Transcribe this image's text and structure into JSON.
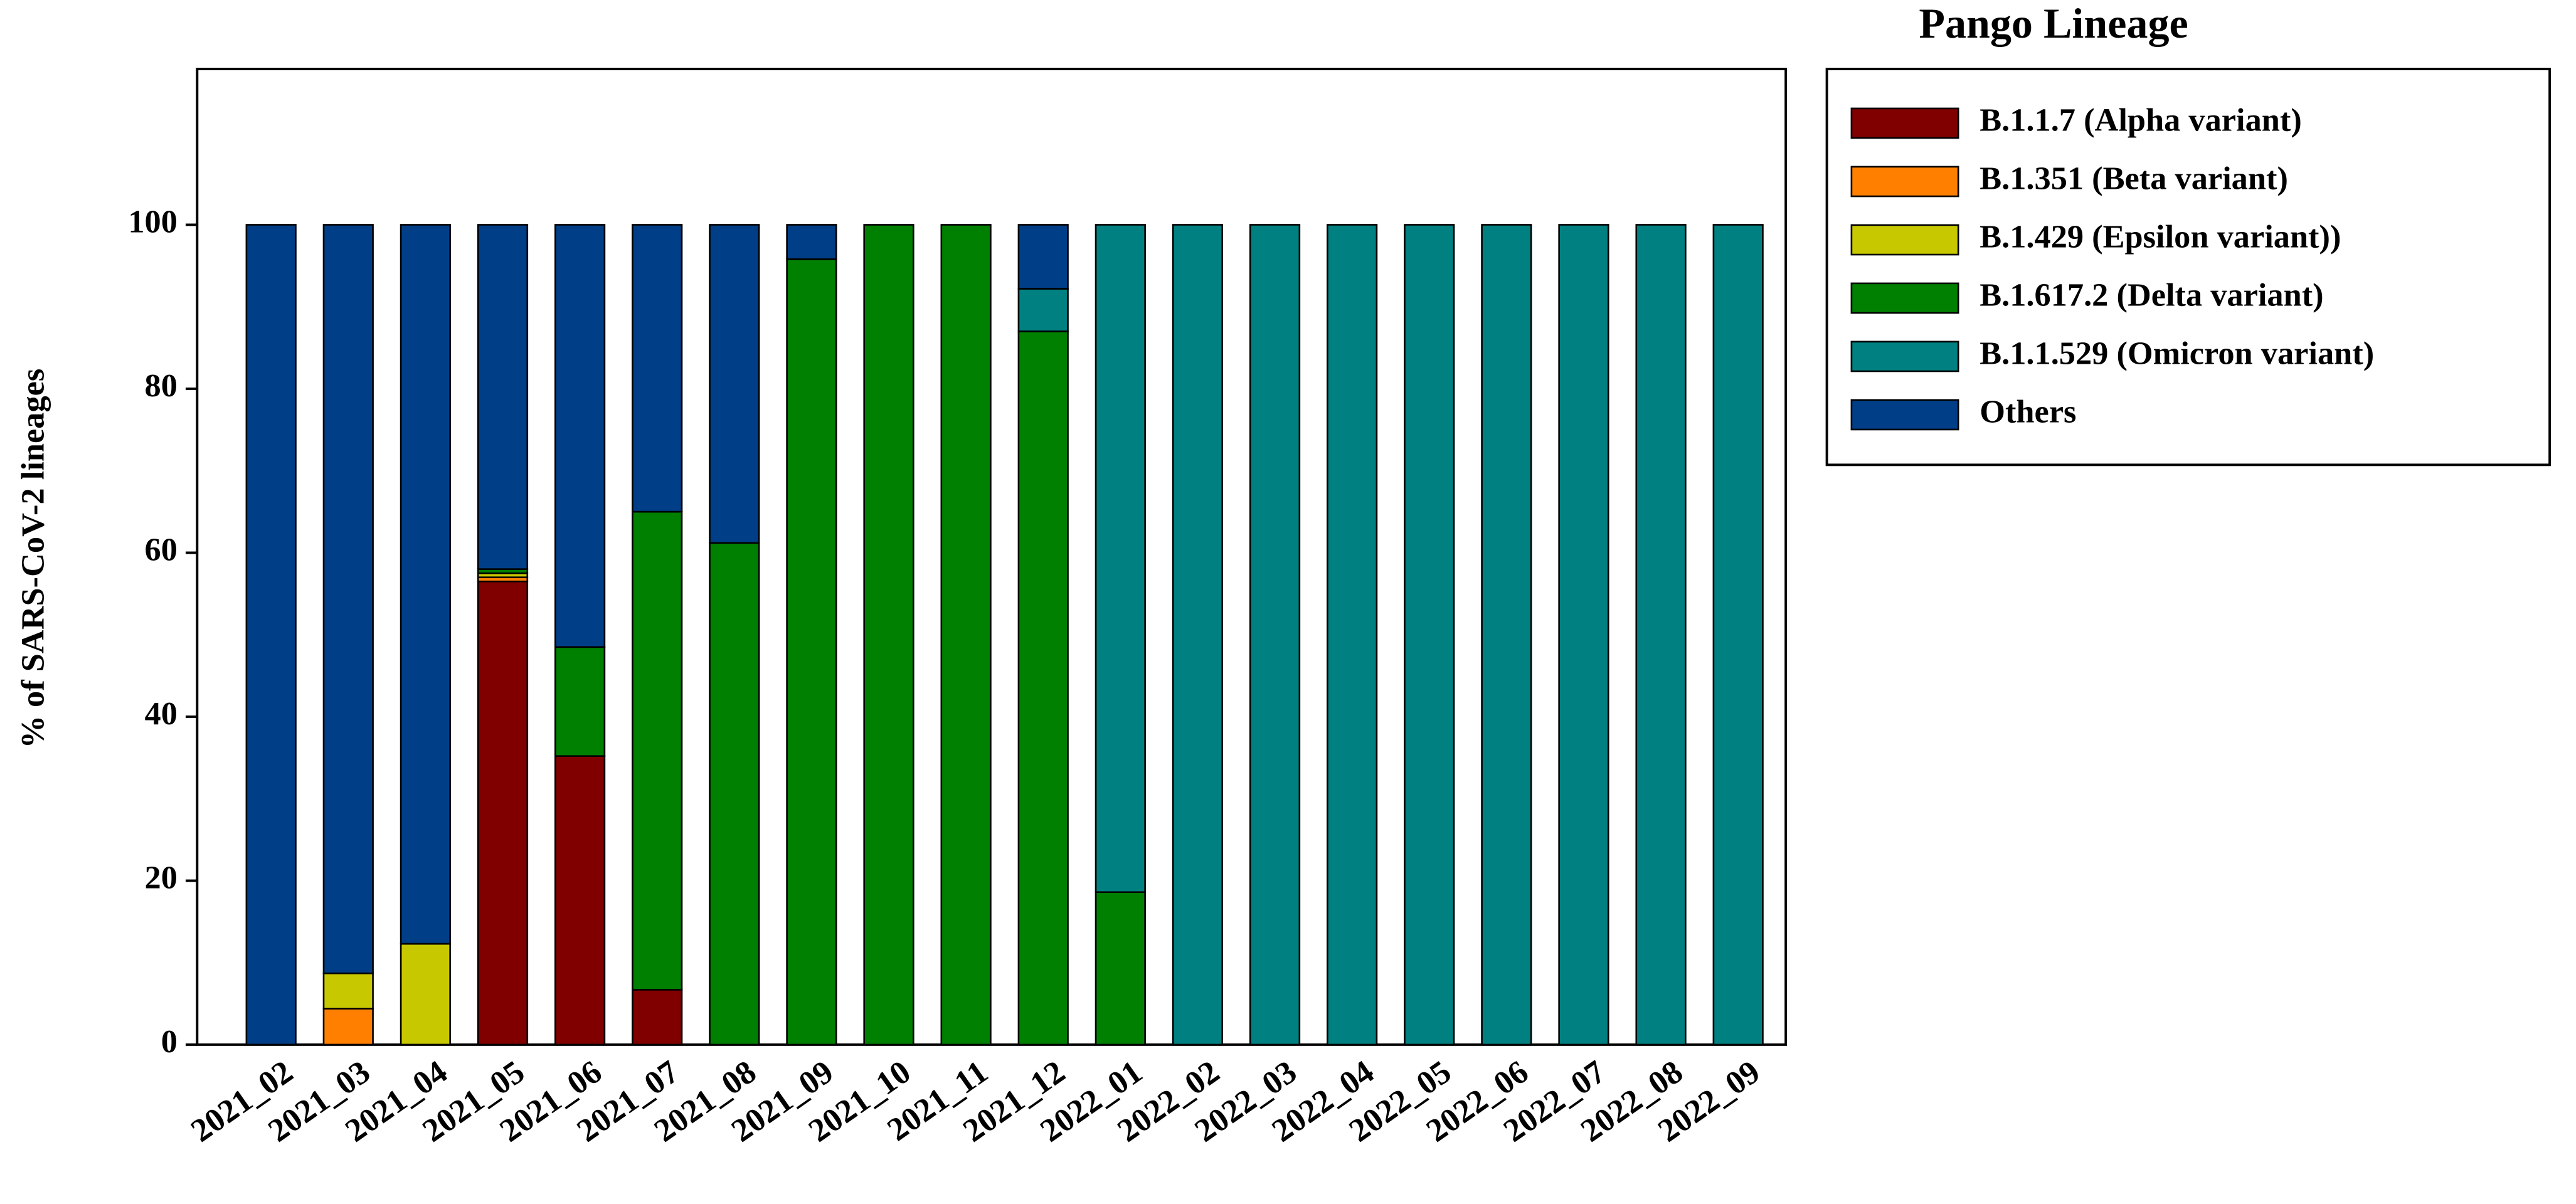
{
  "chart_data": {
    "type": "stacked_bar",
    "title": "Pango Lineage",
    "y_label": "% of SARS-CoV-2 lineages",
    "categories": [
      "2021_02",
      "2021_03",
      "2021_04",
      "2021_05",
      "2021_06",
      "2021_07",
      "2021_08",
      "2021_09",
      "2021_10",
      "2021_11",
      "2021_12",
      "2022_01",
      "2022_02",
      "2022_03",
      "2022_04",
      "2022_05",
      "2022_06",
      "2022_07",
      "2022_08",
      "2022_09"
    ],
    "series": [
      {
        "name": "B.1.1.7 (Alpha variant)",
        "color": "#800000",
        "values": [
          0,
          0,
          0,
          56.5,
          35.2,
          6.7,
          0,
          0,
          0,
          0,
          0,
          0,
          0,
          0,
          0,
          0,
          0,
          0,
          0,
          0
        ]
      },
      {
        "name": "B.1.351 (Beta variant)",
        "color": "#ff8000",
        "values": [
          0,
          4.4,
          0,
          0.5,
          0,
          0,
          0,
          0,
          0,
          0,
          0,
          0,
          0,
          0,
          0,
          0,
          0,
          0,
          0,
          0
        ]
      },
      {
        "name": "B.1.429 (Epsilon variant))",
        "color": "#c8c800",
        "values": [
          0,
          4.3,
          12.3,
          0.5,
          0,
          0,
          0,
          0,
          0,
          0,
          0,
          0,
          0,
          0,
          0,
          0,
          0,
          0,
          0,
          0
        ]
      },
      {
        "name": "B.1.617.2 (Delta variant)",
        "color": "#008000",
        "values": [
          0,
          0,
          0,
          0.5,
          13.3,
          58.3,
          61.2,
          95.8,
          100,
          100,
          87,
          18.6,
          0,
          0,
          0,
          0,
          0,
          0,
          0,
          0
        ]
      },
      {
        "name": "B.1.1.529 (Omicron variant)",
        "color": "#008080",
        "values": [
          0,
          0,
          0,
          0,
          0,
          0,
          0,
          0,
          0,
          0,
          5.2,
          81.4,
          100,
          100,
          100,
          100,
          100,
          100,
          100,
          100
        ]
      },
      {
        "name": "Others",
        "color": "#003f87",
        "values": [
          100,
          91.3,
          87.7,
          42,
          51.5,
          35,
          38.8,
          4.2,
          0,
          0,
          7.8,
          0,
          0,
          0,
          0,
          0,
          0,
          0,
          0,
          0
        ]
      }
    ],
    "ylim": [
      0,
      119
    ],
    "yticks": [
      0,
      20,
      40,
      60,
      80,
      100
    ]
  }
}
